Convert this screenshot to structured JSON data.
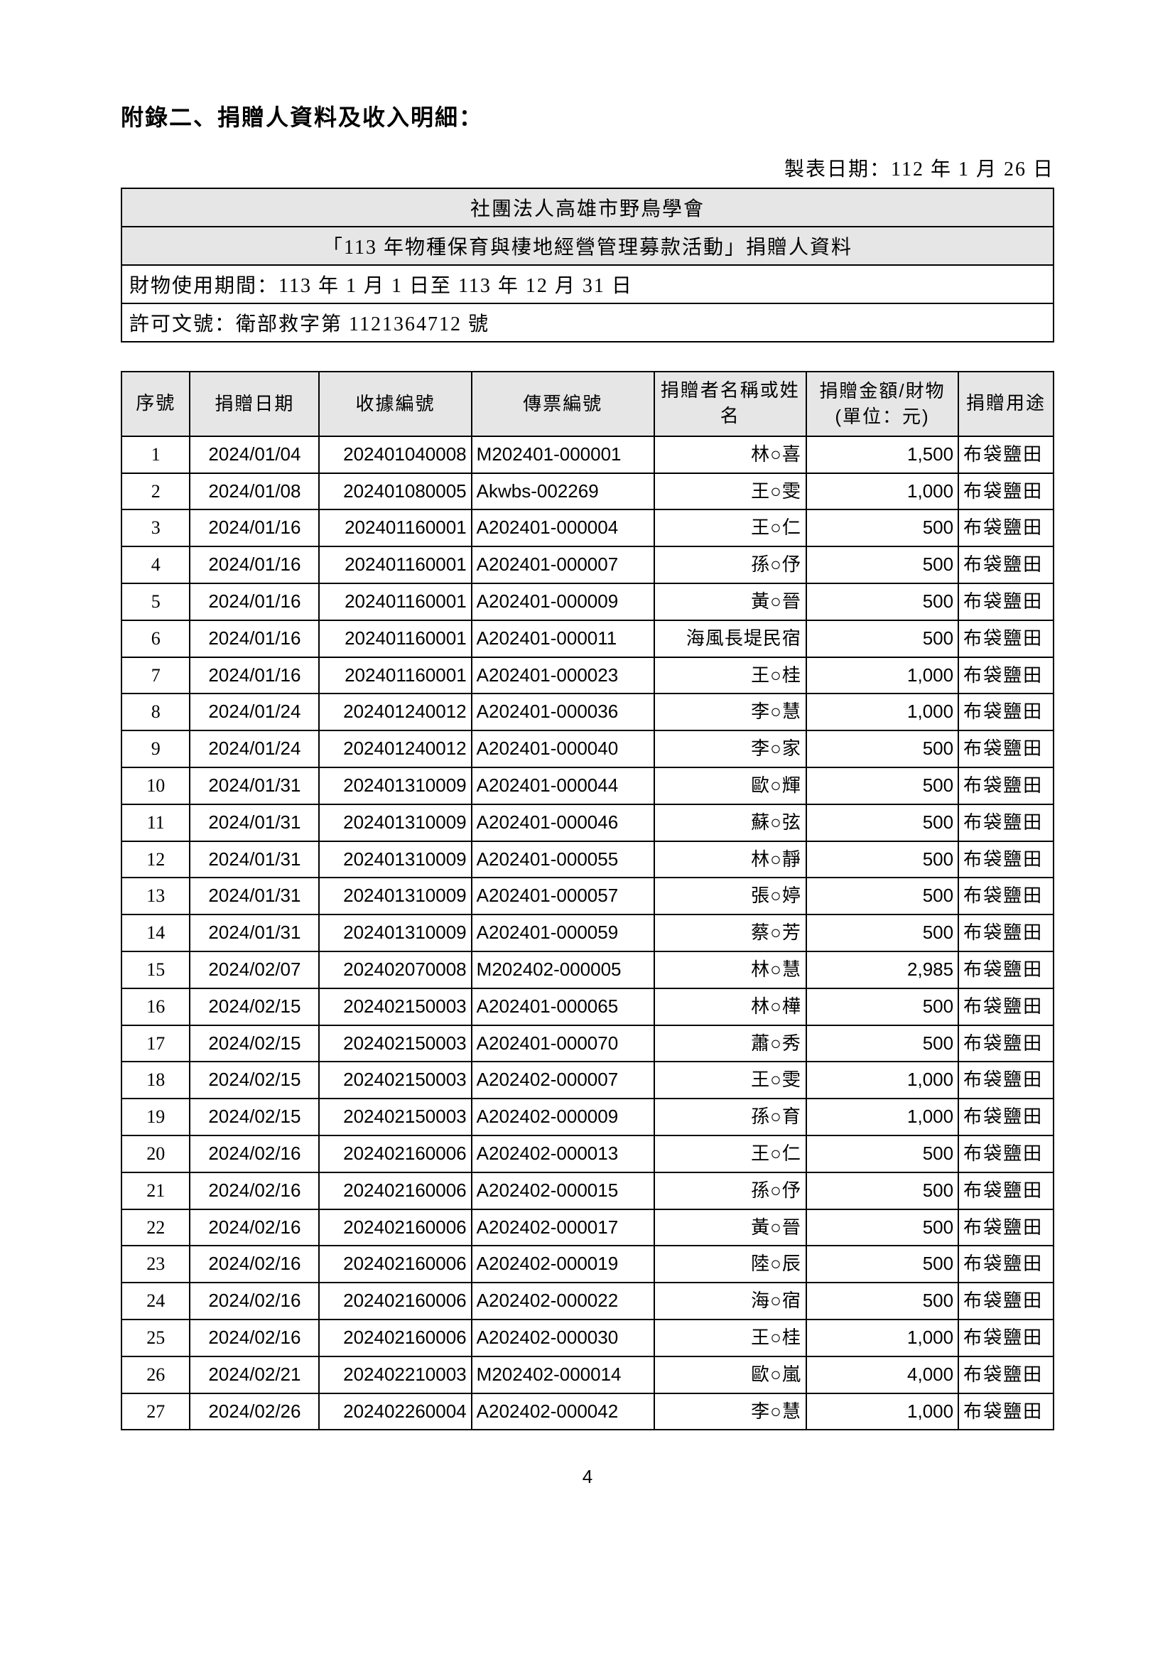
{
  "title": "附錄二、捐贈人資料及收入明細：",
  "report_date": "製表日期：112 年 1 月 26 日",
  "header": {
    "org": "社團法人高雄市野鳥學會",
    "activity": "「113 年物種保育與棲地經營管理募款活動」捐贈人資料",
    "period": "財物使用期間：113 年 1 月 1 日至 113 年 12 月 31 日",
    "permit": "許可文號：衛部救字第 1121364712 號"
  },
  "columns": {
    "seq": "序號",
    "date": "捐贈日期",
    "receipt": "收據編號",
    "voucher": "傳票編號",
    "name": "捐贈者名稱或姓名",
    "amount": "捐贈金額/財物(單位：元)",
    "use": "捐贈用途"
  },
  "rows": [
    {
      "seq": "1",
      "date": "2024/01/04",
      "receipt": "202401040008",
      "voucher": "M202401-000001",
      "name": "林○喜",
      "amount": "1,500",
      "use": "布袋鹽田"
    },
    {
      "seq": "2",
      "date": "2024/01/08",
      "receipt": "202401080005",
      "voucher": "Akwbs-002269",
      "name": "王○雯",
      "amount": "1,000",
      "use": "布袋鹽田"
    },
    {
      "seq": "3",
      "date": "2024/01/16",
      "receipt": "202401160001",
      "voucher": "A202401-000004",
      "name": "王○仁",
      "amount": "500",
      "use": "布袋鹽田"
    },
    {
      "seq": "4",
      "date": "2024/01/16",
      "receipt": "202401160001",
      "voucher": "A202401-000007",
      "name": "孫○伃",
      "amount": "500",
      "use": "布袋鹽田"
    },
    {
      "seq": "5",
      "date": "2024/01/16",
      "receipt": "202401160001",
      "voucher": "A202401-000009",
      "name": "黃○晉",
      "amount": "500",
      "use": "布袋鹽田"
    },
    {
      "seq": "6",
      "date": "2024/01/16",
      "receipt": "202401160001",
      "voucher": "A202401-000011",
      "name": "海風長堤民宿",
      "amount": "500",
      "use": "布袋鹽田"
    },
    {
      "seq": "7",
      "date": "2024/01/16",
      "receipt": "202401160001",
      "voucher": "A202401-000023",
      "name": "王○桂",
      "amount": "1,000",
      "use": "布袋鹽田"
    },
    {
      "seq": "8",
      "date": "2024/01/24",
      "receipt": "202401240012",
      "voucher": "A202401-000036",
      "name": "李○慧",
      "amount": "1,000",
      "use": "布袋鹽田"
    },
    {
      "seq": "9",
      "date": "2024/01/24",
      "receipt": "202401240012",
      "voucher": "A202401-000040",
      "name": "李○家",
      "amount": "500",
      "use": "布袋鹽田"
    },
    {
      "seq": "10",
      "date": "2024/01/31",
      "receipt": "202401310009",
      "voucher": "A202401-000044",
      "name": "歐○輝",
      "amount": "500",
      "use": "布袋鹽田"
    },
    {
      "seq": "11",
      "date": "2024/01/31",
      "receipt": "202401310009",
      "voucher": "A202401-000046",
      "name": "蘇○弦",
      "amount": "500",
      "use": "布袋鹽田"
    },
    {
      "seq": "12",
      "date": "2024/01/31",
      "receipt": "202401310009",
      "voucher": "A202401-000055",
      "name": "林○靜",
      "amount": "500",
      "use": "布袋鹽田"
    },
    {
      "seq": "13",
      "date": "2024/01/31",
      "receipt": "202401310009",
      "voucher": "A202401-000057",
      "name": "張○婷",
      "amount": "500",
      "use": "布袋鹽田"
    },
    {
      "seq": "14",
      "date": "2024/01/31",
      "receipt": "202401310009",
      "voucher": "A202401-000059",
      "name": "蔡○芳",
      "amount": "500",
      "use": "布袋鹽田"
    },
    {
      "seq": "15",
      "date": "2024/02/07",
      "receipt": "202402070008",
      "voucher": "M202402-000005",
      "name": "林○慧",
      "amount": "2,985",
      "use": "布袋鹽田"
    },
    {
      "seq": "16",
      "date": "2024/02/15",
      "receipt": "202402150003",
      "voucher": "A202401-000065",
      "name": "林○樺",
      "amount": "500",
      "use": "布袋鹽田"
    },
    {
      "seq": "17",
      "date": "2024/02/15",
      "receipt": "202402150003",
      "voucher": "A202401-000070",
      "name": "蕭○秀",
      "amount": "500",
      "use": "布袋鹽田"
    },
    {
      "seq": "18",
      "date": "2024/02/15",
      "receipt": "202402150003",
      "voucher": "A202402-000007",
      "name": "王○雯",
      "amount": "1,000",
      "use": "布袋鹽田"
    },
    {
      "seq": "19",
      "date": "2024/02/15",
      "receipt": "202402150003",
      "voucher": "A202402-000009",
      "name": "孫○育",
      "amount": "1,000",
      "use": "布袋鹽田"
    },
    {
      "seq": "20",
      "date": "2024/02/16",
      "receipt": "202402160006",
      "voucher": "A202402-000013",
      "name": "王○仁",
      "amount": "500",
      "use": "布袋鹽田"
    },
    {
      "seq": "21",
      "date": "2024/02/16",
      "receipt": "202402160006",
      "voucher": "A202402-000015",
      "name": "孫○伃",
      "amount": "500",
      "use": "布袋鹽田"
    },
    {
      "seq": "22",
      "date": "2024/02/16",
      "receipt": "202402160006",
      "voucher": "A202402-000017",
      "name": "黃○晉",
      "amount": "500",
      "use": "布袋鹽田"
    },
    {
      "seq": "23",
      "date": "2024/02/16",
      "receipt": "202402160006",
      "voucher": "A202402-000019",
      "name": "陸○辰",
      "amount": "500",
      "use": "布袋鹽田"
    },
    {
      "seq": "24",
      "date": "2024/02/16",
      "receipt": "202402160006",
      "voucher": "A202402-000022",
      "name": "海○宿",
      "amount": "500",
      "use": "布袋鹽田"
    },
    {
      "seq": "25",
      "date": "2024/02/16",
      "receipt": "202402160006",
      "voucher": "A202402-000030",
      "name": "王○桂",
      "amount": "1,000",
      "use": "布袋鹽田"
    },
    {
      "seq": "26",
      "date": "2024/02/21",
      "receipt": "202402210003",
      "voucher": "M202402-000014",
      "name": "歐○嵐",
      "amount": "4,000",
      "use": "布袋鹽田"
    },
    {
      "seq": "27",
      "date": "2024/02/26",
      "receipt": "202402260004",
      "voucher": "A202402-000042",
      "name": "李○慧",
      "amount": "1,000",
      "use": "布袋鹽田"
    }
  ],
  "page_number": "4"
}
